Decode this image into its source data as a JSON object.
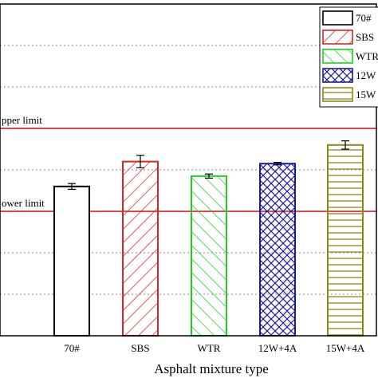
{
  "chart_data": {
    "type": "bar",
    "title": "",
    "xlabel": "Asphalt mixture type",
    "ylabel": "",
    "categories": [
      "70#",
      "SBS",
      "WTR",
      "12W+4A",
      "15W+4A"
    ],
    "values": [
      3.6,
      4.2,
      3.85,
      4.15,
      4.6
    ],
    "errors": [
      0.07,
      0.15,
      0.05,
      0.03,
      0.1
    ],
    "ylim": [
      0,
      8
    ],
    "grid": "horizontal-dotted",
    "legend_position": "top-right",
    "reference_lines": [
      {
        "label": "pper limit",
        "value": 5
      },
      {
        "label": "ower limit",
        "value": 3
      }
    ],
    "series_styles": [
      {
        "legend_label": "70#",
        "color": "#000000",
        "pattern": "none"
      },
      {
        "legend_label": "SBS",
        "color": "#d62728",
        "pattern": "diagonal-right"
      },
      {
        "legend_label": "WTR",
        "color": "#22cc22",
        "pattern": "diagonal-left"
      },
      {
        "legend_label": "12W",
        "color": "#1c1c9a",
        "pattern": "crosshatch"
      },
      {
        "legend_label": "15W",
        "color": "#8a8a1a",
        "pattern": "horizontal"
      }
    ]
  }
}
